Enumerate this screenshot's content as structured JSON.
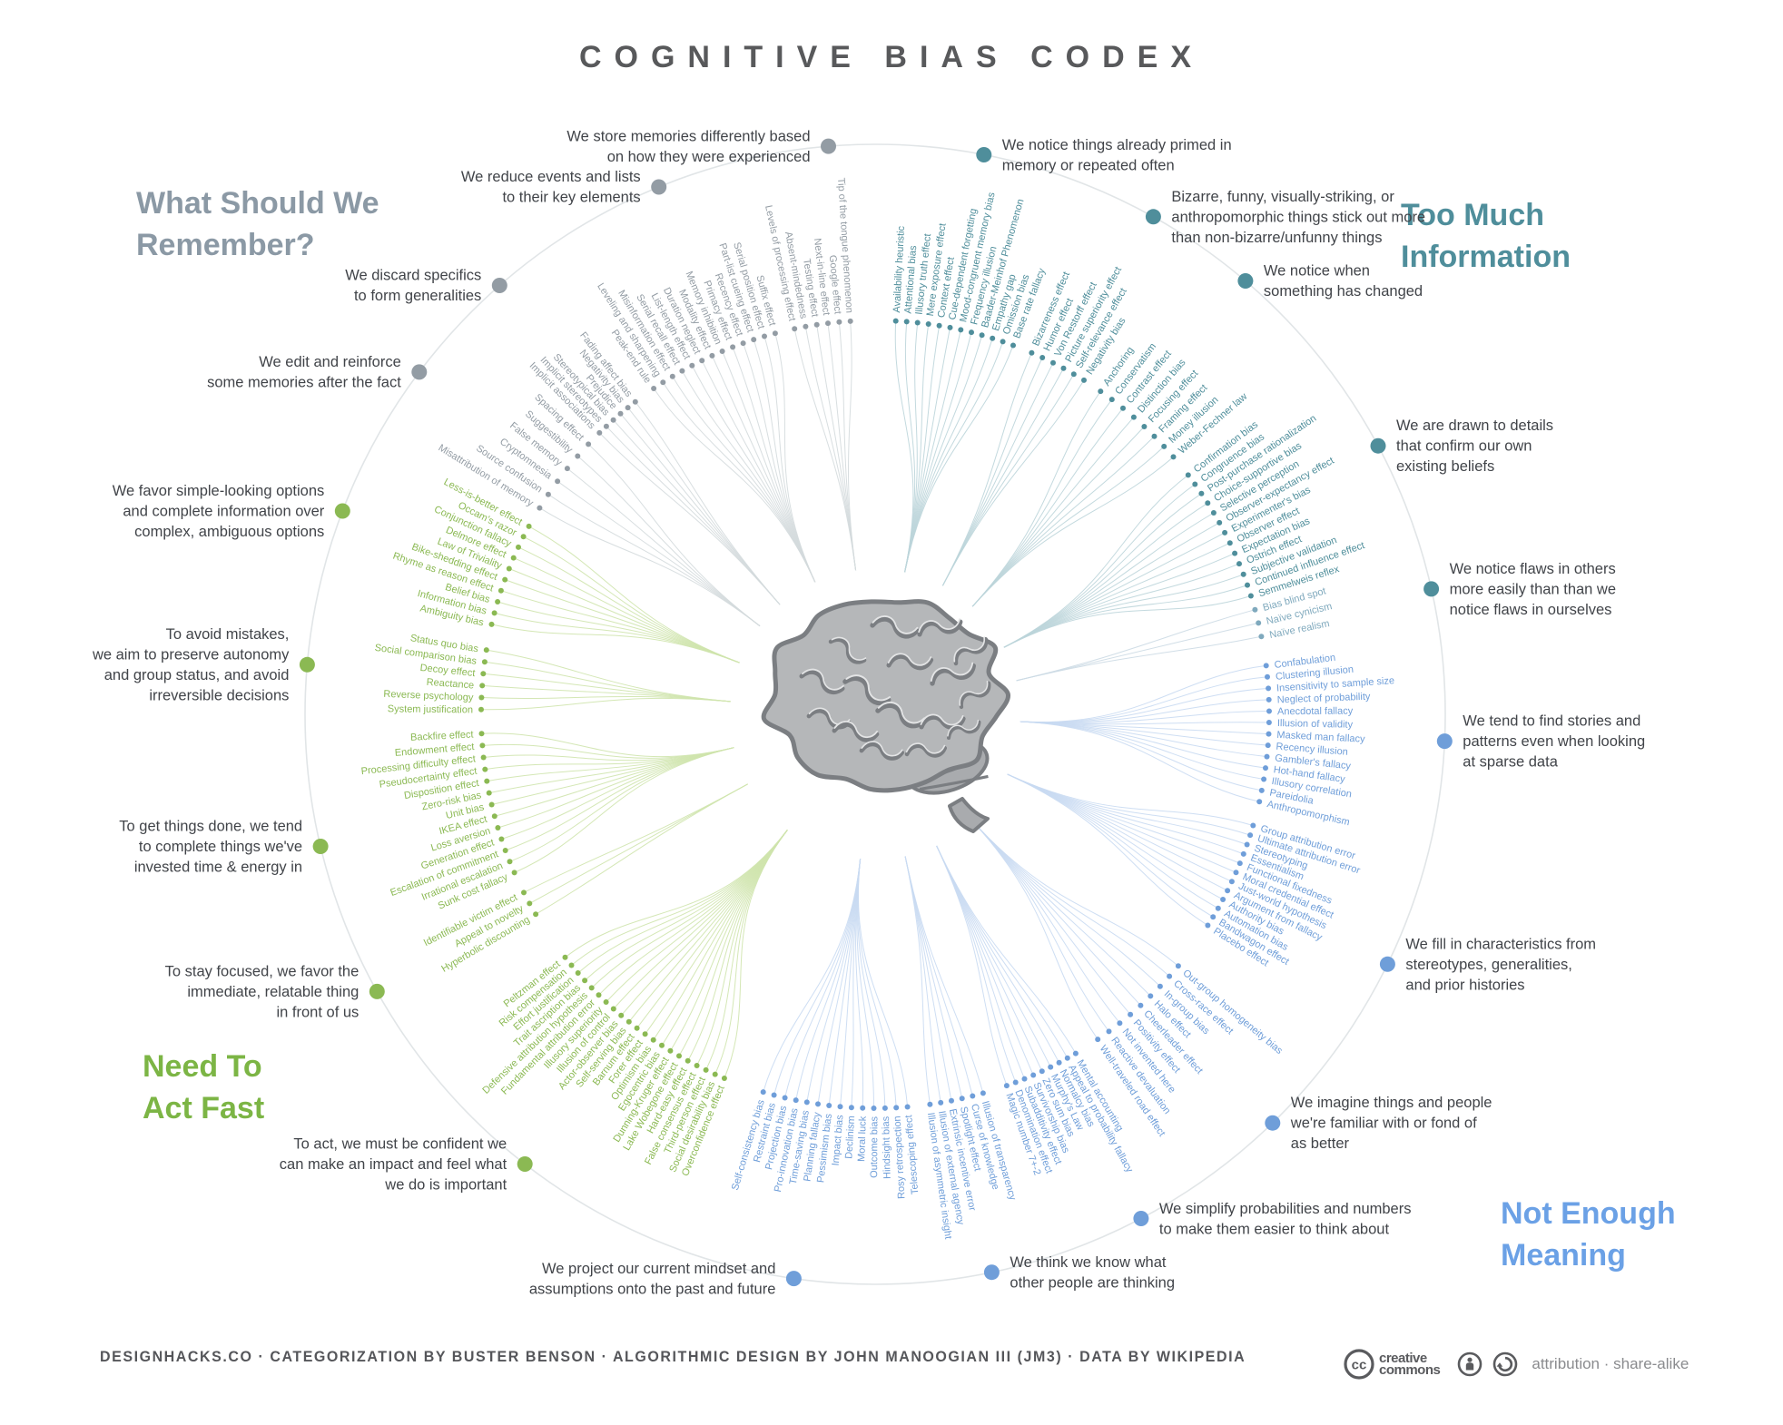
{
  "title": "COGNITIVE BIAS CODEX",
  "colors": {
    "title": "#58595b",
    "annotation_text": "#414449",
    "ring": "#e1e5e7",
    "footer": "#55565a",
    "license_text": "#8a8b8e",
    "tmi": "#4f8e9b",
    "tmi_light": "#7fa9bd",
    "nem": "#6f9ed9",
    "naf": "#8bb953",
    "wsr": "#939ca4",
    "tmi_line": "#bdd5da",
    "tmi_light_line": "#ccdae4",
    "nem_line": "#c9daf2",
    "naf_line": "#cfe4ad",
    "wsr_line": "#d4dadd",
    "heading_wsr": "#8b99a5",
    "heading_tmi": "#4f8e9b",
    "heading_nem": "#6ba1e6",
    "heading_naf": "#7cb545"
  },
  "quadrants": {
    "wsr": {
      "lines": [
        "What Should We",
        "Remember?"
      ]
    },
    "tmi": {
      "lines": [
        "Too Much",
        "Information"
      ]
    },
    "nem": {
      "lines": [
        "Not Enough",
        "Meaning"
      ]
    },
    "naf": {
      "lines": [
        "Need To",
        "Act Fast"
      ]
    }
  },
  "groups": [
    {
      "id": "tmi-primed",
      "quadrant": "tmi",
      "start_angle": 3.0,
      "end_angle": 20.5,
      "annotation": {
        "angle": 11.0,
        "lines": [
          "We notice things already primed in",
          "memory or repeated often"
        ]
      },
      "biases": [
        "Availability heuristic",
        "Attentional bias",
        "Illusory truth effect",
        "Mere exposure effect",
        "Context effect",
        "Cue-dependent forgetting",
        "Mood-congruent memory bias",
        "Frequency illusion",
        "Baader-Meinhof Phenomenon",
        "Empathy gap",
        "Omission bias",
        "Base rate fallacy"
      ]
    },
    {
      "id": "tmi-bizarre",
      "quadrant": "tmi",
      "start_angle": 23.4,
      "end_angle": 32.0,
      "annotation": {
        "angle": 29.2,
        "lines": [
          "Bizarre, funny, visually-striking, or",
          "anthropomorphic things stick out more",
          "than non-bizarre/unfunny things"
        ]
      },
      "biases": [
        "Bizarreness effect",
        "Humor effect",
        "Von Restorff effect",
        "Picture superiority effect",
        "Self-relevance effect",
        "Negativity bias"
      ]
    },
    {
      "id": "tmi-changed",
      "quadrant": "tmi",
      "start_angle": 34.9,
      "end_angle": 49.2,
      "annotation": {
        "angle": 40.5,
        "lines": [
          "We notice when",
          "something has changed"
        ]
      },
      "biases": [
        "Anchoring",
        "Conservatism",
        "Contrast effect",
        "Distinction bias",
        "Focusing effect",
        "Framing effect",
        "Money illusion",
        "Weber-Fechner law"
      ]
    },
    {
      "id": "tmi-confirm",
      "quadrant": "tmi",
      "start_angle": 52.6,
      "end_angle": 72.5,
      "annotation": {
        "angle": 61.9,
        "lines": [
          "We are drawn to details",
          "that confirm our own",
          "existing beliefs"
        ]
      },
      "biases": [
        "Confirmation bias",
        "Congruence bias",
        "Post-purchase rationalization",
        "Choice-supportive bias",
        "Selective perception",
        "Observer-expectancy effect",
        "Experimenter's bias",
        "Observer effect",
        "Expectation bias",
        "Ostrich effect",
        "Subjective validation",
        "Continued influence effect",
        "Semmelweis reflex"
      ]
    },
    {
      "id": "tmi-flaws",
      "quadrant": "tmi",
      "color_override": "tmi_light",
      "line_override": "tmi_light_line",
      "start_angle": 74.6,
      "end_angle": 78.6,
      "annotation": {
        "angle": 77.3,
        "lines": [
          "We notice flaws in others",
          "more easily than than we",
          "notice flaws in ourselves"
        ]
      },
      "biases": [
        "Bias blind spot",
        "Naïve cynicism",
        "Naïve realism"
      ]
    },
    {
      "id": "nem-stories",
      "quadrant": "nem",
      "start_angle": 82.9,
      "end_angle": 102.8,
      "annotation": {
        "angle": 92.7,
        "lines": [
          "We tend to find stories and",
          "patterns even when looking",
          "at sparse data"
        ]
      },
      "biases": [
        "Confabulation",
        "Clustering illusion",
        "Insensitivity to sample size",
        "Neglect of probability",
        "Anecdotal fallacy",
        "Illusion of validity",
        "Masked man fallacy",
        "Recency illusion",
        "Gambler's fallacy",
        "Hot-hand fallacy",
        "Illusory correlation",
        "Pareidolia",
        "Anthropomorphism"
      ]
    },
    {
      "id": "nem-stereotypes",
      "quadrant": "nem",
      "start_angle": 106.4,
      "end_angle": 122.4,
      "annotation": {
        "angle": 116.0,
        "lines": [
          "We fill in characteristics from",
          "stereotypes, generalities,",
          "and prior histories"
        ]
      },
      "biases": [
        "Group attribution error",
        "Ultimate attribution error",
        "Stereotyping",
        "Essentialism",
        "Functional fixedness",
        "Moral credential effect",
        "Just-world hypothesis",
        "Argument from fallacy",
        "Authority bias",
        "Automation bias",
        "Bandwagon effect",
        "Placebo effect"
      ]
    },
    {
      "id": "nem-familiar",
      "quadrant": "nem",
      "start_angle": 129.7,
      "end_angle": 145.6,
      "annotation": {
        "angle": 135.8,
        "lines": [
          "We imagine things and people",
          "we're familiar with or fond of",
          "as better"
        ]
      },
      "biases": [
        "Out-group homogeneity bias",
        "Cross-race effect",
        "In-group bias",
        "Halo effect",
        "Cheerleader effect",
        "Positivity effect",
        "Not invented here",
        "Reactive devaluation",
        "Well-traveled road effect"
      ]
    },
    {
      "id": "nem-simplify",
      "quadrant": "nem",
      "start_angle": 149.4,
      "end_angle": 160.5,
      "annotation": {
        "angle": 152.2,
        "lines": [
          "We simplify probabilities and numbers",
          "to make them easier to think about"
        ]
      },
      "biases": [
        "Mental accounting",
        "Appeal to probability fallacy",
        "Normalcy bias",
        "Murphy's Law",
        "Zero sum bias",
        "Survivorship bias",
        "Subadditivity effect",
        "Denomination effect",
        "Magic number 7+-2"
      ]
    },
    {
      "id": "nem-minds",
      "quadrant": "nem",
      "start_angle": 164.1,
      "end_angle": 172.0,
      "annotation": {
        "angle": 168.2,
        "lines": [
          "We think we know what",
          "other people are thinking"
        ]
      },
      "biases": [
        "Illusion of transparency",
        "Curse of knowledge",
        "Spotlight effect",
        "Extrinsic incentive error",
        "Illusion of external agency",
        "Illusion of asymmetric insight"
      ]
    },
    {
      "id": "nem-project",
      "quadrant": "nem",
      "start_angle": 175.3,
      "end_angle": 196.5,
      "annotation": {
        "angle": 188.2,
        "lines": [
          "We project our current mindset and",
          "assumptions onto the past and future"
        ]
      },
      "biases": [
        "Telescoping effect",
        "Rosy retrospection",
        "Hindsight bias",
        "Outcome bias",
        "Moral luck",
        "Declinism",
        "Impact bias",
        "Pessimism bias",
        "Planning fallacy",
        "Time-saving bias",
        "Pro-innovation bias",
        "Projection bias",
        "Restraint bias",
        "Self-consistency bias"
      ]
    },
    {
      "id": "naf-confident",
      "quadrant": "naf",
      "start_angle": 202.5,
      "end_angle": 231.9,
      "annotation": {
        "angle": 217.9,
        "lines": [
          "To act, we must be confident we",
          "can make an impact and feel what",
          "we do is important"
        ]
      },
      "biases": [
        "Overconfidence effect",
        "Social desirability bias",
        "Third-person effect",
        "False consensus effect",
        "Hard-easy effect",
        "Lake Wobegone effect",
        "Dunning-Kruger effect",
        "Egocentric bias",
        "Optimism bias",
        "Forer effect",
        "Barnum effect",
        "Self-serving bias",
        "Actor-observer bias",
        "Illusion of control",
        "Illusory superiority",
        "Fundamental attribution error",
        "Defensive attribution hypothesis",
        "Trait ascription bias",
        "Effort justification",
        "Risk compensation",
        "Peltzman effect"
      ]
    },
    {
      "id": "naf-focused",
      "quadrant": "naf",
      "start_angle": 239.5,
      "end_angle": 243.1,
      "annotation": {
        "angle": 240.9,
        "lines": [
          "To stay focused, we favor the",
          "immediate, relatable thing",
          "in front of us"
        ]
      },
      "biases": [
        "Hyperbolic discounting",
        "Appeal to novelty",
        "Identifiable victim effect"
      ]
    },
    {
      "id": "naf-invested",
      "quadrant": "naf",
      "start_angle": 246.3,
      "end_angle": 267.2,
      "annotation": {
        "angle": 256.6,
        "lines": [
          "To get things done, we tend",
          "to complete things we've",
          "invested time & energy in"
        ]
      },
      "biases": [
        "Sunk cost fallacy",
        "Irrational escalation",
        "Escalation of commitment",
        "Generation effect",
        "Loss aversion",
        "IKEA effect",
        "Unit bias",
        "Zero-risk bias",
        "Disposition effect",
        "Pseudocertainty effect",
        "Processing difficulty effect",
        "Endowment effect",
        "Backfire effect"
      ]
    },
    {
      "id": "naf-autonomy",
      "quadrant": "naf",
      "start_angle": 270.7,
      "end_angle": 279.4,
      "annotation": {
        "angle": 275.0,
        "lines": [
          "To avoid mistakes,",
          "we aim to preserve autonomy",
          "and group status, and avoid",
          "irreversible decisions"
        ]
      },
      "biases": [
        "System justification",
        "Reverse psychology",
        "Reactance",
        "Decoy effect",
        "Social comparison bias",
        "Status quo bias"
      ]
    },
    {
      "id": "naf-simple",
      "quadrant": "naf",
      "start_angle": 283.2,
      "end_angle": 298.5,
      "annotation": {
        "angle": 290.9,
        "lines": [
          "We favor simple-looking options",
          "and complete information over",
          "complex, ambiguous options"
        ]
      },
      "biases": [
        "Ambiguity bias",
        "Information bias",
        "Belief bias",
        "Rhyme as reason effect",
        "Bike-shedding effect",
        "Law of Triviality",
        "Delmore effect",
        "Conjunction fallacy",
        "Occam's razor",
        "Less-is-better effect"
      ]
    },
    {
      "id": "wsr-edit",
      "quadrant": "wsr",
      "start_angle": 301.6,
      "end_angle": 313.3,
      "annotation": {
        "angle": 306.9,
        "lines": [
          "We edit and reinforce",
          "some memories after the fact"
        ]
      },
      "biases": [
        "Misattribution of memory",
        "Source confusion",
        "Cryptomnesia",
        "False memory",
        "Suggestibility",
        "Spacing effect"
      ]
    },
    {
      "id": "wsr-discard",
      "quadrant": "wsr",
      "start_angle": 315.6,
      "end_angle": 322.5,
      "annotation": {
        "angle": 318.8,
        "lines": [
          "We discard specifics",
          "to form generalities"
        ]
      },
      "biases": [
        "Implicit associations",
        "Implicit stereotypes",
        "Stereotypical bias",
        "Prejudice",
        "Negativity bias",
        "Fading affect bias"
      ]
    },
    {
      "id": "wsr-reduce",
      "quadrant": "wsr",
      "start_angle": 325.8,
      "end_angle": 345.3,
      "annotation": {
        "angle": 337.7,
        "lines": [
          "We reduce events and lists",
          "to their key elements"
        ]
      },
      "biases": [
        "Peak-end rule",
        "Leveling and sharpening",
        "Misinformation effect",
        "Serial recall effect",
        "List-length effect",
        "Duration neglect",
        "Modality effect",
        "Memory inhibition",
        "Primacy effect",
        "Recency effect",
        "Part-list cueing effect",
        "Serial position effect",
        "Suffix effect"
      ]
    },
    {
      "id": "wsr-store",
      "quadrant": "wsr",
      "start_angle": 348.2,
      "end_angle": 356.4,
      "annotation": {
        "angle": 355.3,
        "lines": [
          "We store memories differently based",
          "on how they were experienced"
        ]
      },
      "biases": [
        "Levels of processing effect",
        "Absent-mindedness",
        "Testing effect",
        "Next-in-line effect",
        "Google effect",
        "Tip of the tongue phenomenon"
      ]
    }
  ],
  "footer": {
    "credits": "DESIGNHACKS.CO  ·  CATEGORIZATION BY BUSTER BENSON  ·  ALGORITHMIC DESIGN BY JOHN MANOOGIAN III (JM3)  ·  DATA BY WIKIPEDIA",
    "cc_line1": "creative",
    "cc_line2": "commons",
    "license": "attribution · share-alike",
    "icons": [
      "cc-logo-icon",
      "attribution-person-icon",
      "share-alike-icon"
    ]
  }
}
